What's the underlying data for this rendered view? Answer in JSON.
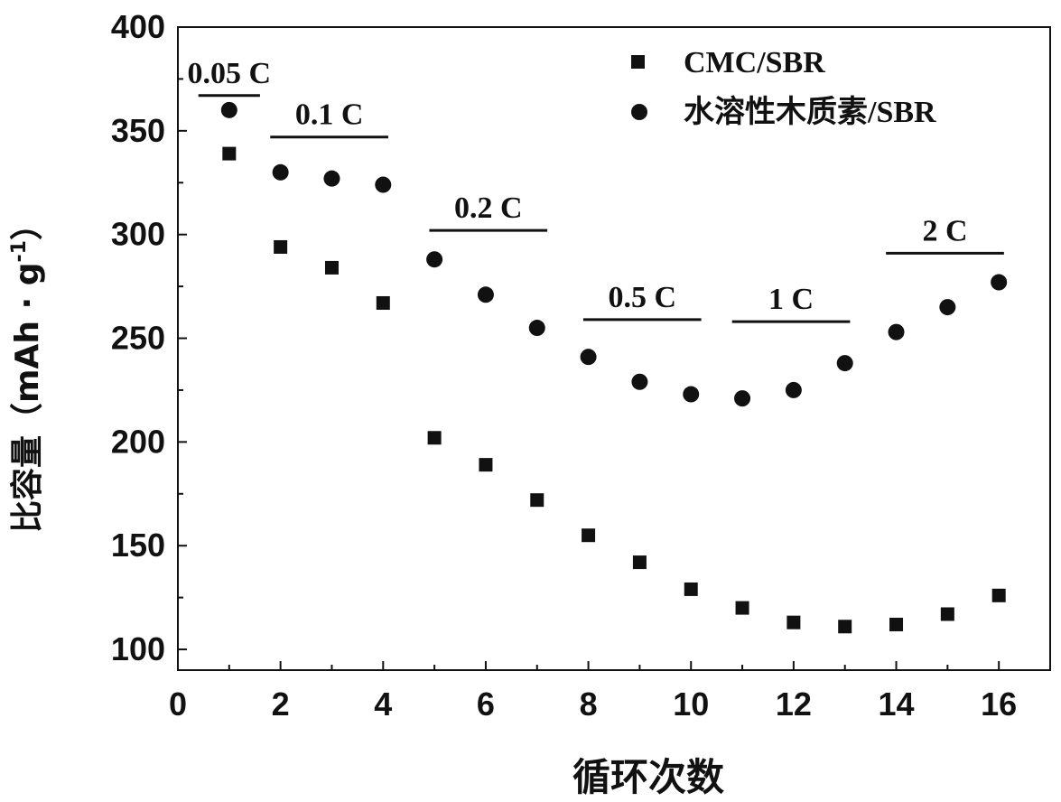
{
  "chart_data": {
    "type": "scatter",
    "title": "",
    "xlabel": "循环次数",
    "ylabel": "比容量（mAh · g",
    "ylabel_sup": "-1",
    "ylabel_end": "）",
    "xlim": [
      0,
      17
    ],
    "ylim": [
      90,
      400
    ],
    "xticks": [
      0,
      2,
      4,
      6,
      8,
      10,
      12,
      14,
      16
    ],
    "yticks": [
      100,
      150,
      200,
      250,
      300,
      350,
      400
    ],
    "x": [
      1,
      2,
      3,
      4,
      5,
      6,
      7,
      8,
      9,
      10,
      11,
      12,
      13,
      14,
      15,
      16
    ],
    "series": [
      {
        "name": "CMC/SBR",
        "marker": "square",
        "values": [
          339,
          294,
          284,
          267,
          202,
          189,
          172,
          155,
          142,
          129,
          120,
          113,
          111,
          112,
          117,
          126
        ]
      },
      {
        "name": "水溶性木质素/SBR",
        "marker": "circle",
        "values": [
          360,
          330,
          327,
          324,
          288,
          271,
          255,
          241,
          229,
          223,
          221,
          225,
          238,
          253,
          265,
          277
        ]
      }
    ],
    "annotations": [
      {
        "text": "0.05 C",
        "x_start": 0.4,
        "x_end": 1.6,
        "line_y": 367
      },
      {
        "text": "0.1 C",
        "x_start": 1.8,
        "x_end": 4.1,
        "line_y": 347
      },
      {
        "text": "0.2 C",
        "x_start": 4.9,
        "x_end": 7.2,
        "line_y": 302
      },
      {
        "text": "0.5 C",
        "x_start": 7.9,
        "x_end": 10.2,
        "line_y": 259
      },
      {
        "text": "1 C",
        "x_start": 10.8,
        "x_end": 13.1,
        "line_y": 258
      },
      {
        "text": "2 C",
        "x_start": 13.8,
        "x_end": 16.1,
        "line_y": 291
      }
    ],
    "legend_position": "top-right",
    "grid": false,
    "colors": {
      "marker": "#111111",
      "axis": "#111111"
    }
  }
}
